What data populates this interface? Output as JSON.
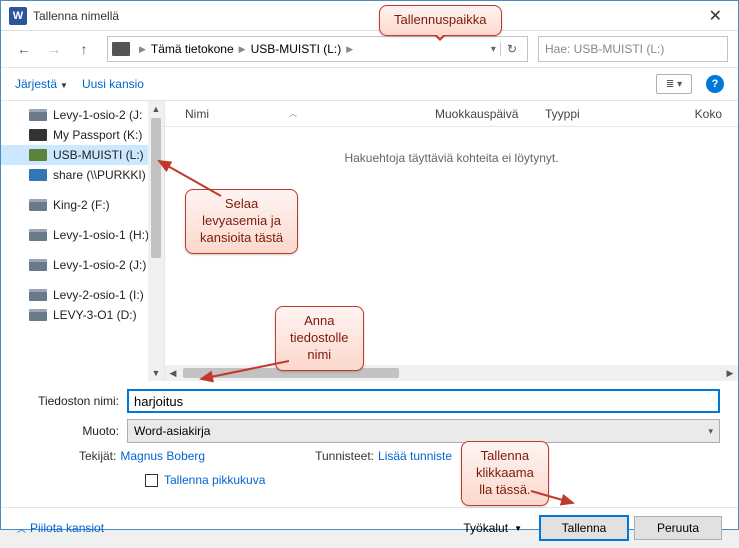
{
  "titlebar": {
    "app_letter": "W",
    "title": "Tallenna nimellä"
  },
  "nav": {
    "breadcrumb": [
      "Tämä tietokone",
      "USB-MUISTI (L:)"
    ],
    "search_placeholder": "Hae: USB-MUISTI (L:)"
  },
  "toolbar": {
    "organize": "Järjestä",
    "new_folder": "Uusi kansio"
  },
  "sidebar": {
    "items": [
      {
        "label": "Levy-1-osio-2 (J:",
        "icon": "drive"
      },
      {
        "label": "My Passport (K:)",
        "icon": "ext"
      },
      {
        "label": "USB-MUISTI (L:)",
        "icon": "usb",
        "selected": true
      },
      {
        "label": "share (\\\\PURKKI)",
        "icon": "net"
      },
      {
        "label": "King-2 (F:)",
        "icon": "drive"
      },
      {
        "label": "Levy-1-osio-1 (H:)",
        "icon": "drive"
      },
      {
        "label": "Levy-1-osio-2 (J:)",
        "icon": "drive"
      },
      {
        "label": "Levy-2-osio-1 (I:)",
        "icon": "drive"
      },
      {
        "label": "LEVY-3-O1 (D:)",
        "icon": "drive"
      }
    ],
    "scroll_thumb_height": 140
  },
  "filepane": {
    "columns": {
      "name": "Nimi",
      "modified": "Muokkauspäivä",
      "type": "Tyyppi",
      "size": "Koko"
    },
    "empty_text": "Hakuehtoja täyttäviä kohteita ei löytynyt."
  },
  "form": {
    "filename_label": "Tiedoston nimi:",
    "filename_value": "harjoitus",
    "format_label": "Muoto:",
    "format_value": "Word-asiakirja",
    "authors_label": "Tekijät:",
    "authors_value": "Magnus Boberg",
    "tags_label": "Tunnisteet:",
    "tags_value": "Lisää tunniste",
    "thumbnail_label": "Tallenna pikkukuva"
  },
  "buttons": {
    "hide_folders": "Piilota kansiot",
    "tools": "Työkalut",
    "save": "Tallenna",
    "cancel": "Peruuta"
  },
  "callouts": {
    "location": "Tallennuspaikka",
    "browse": "Selaa\nlevyasemia ja\nkansioita tästä",
    "name": "Anna\ntiedostolle\nnimi",
    "save": "Tallenna\nklikkaama\nlla tässä."
  },
  "colors": {
    "window_border": "#4a8bc2",
    "link": "#0066cc",
    "primary": "#0078d7",
    "callout_border": "#c0392b",
    "callout_bg_top": "#fef4f2",
    "callout_bg_bottom": "#fcd8cc",
    "callout_text": "#7a1b0c",
    "selection_bg": "#cce8ff"
  }
}
